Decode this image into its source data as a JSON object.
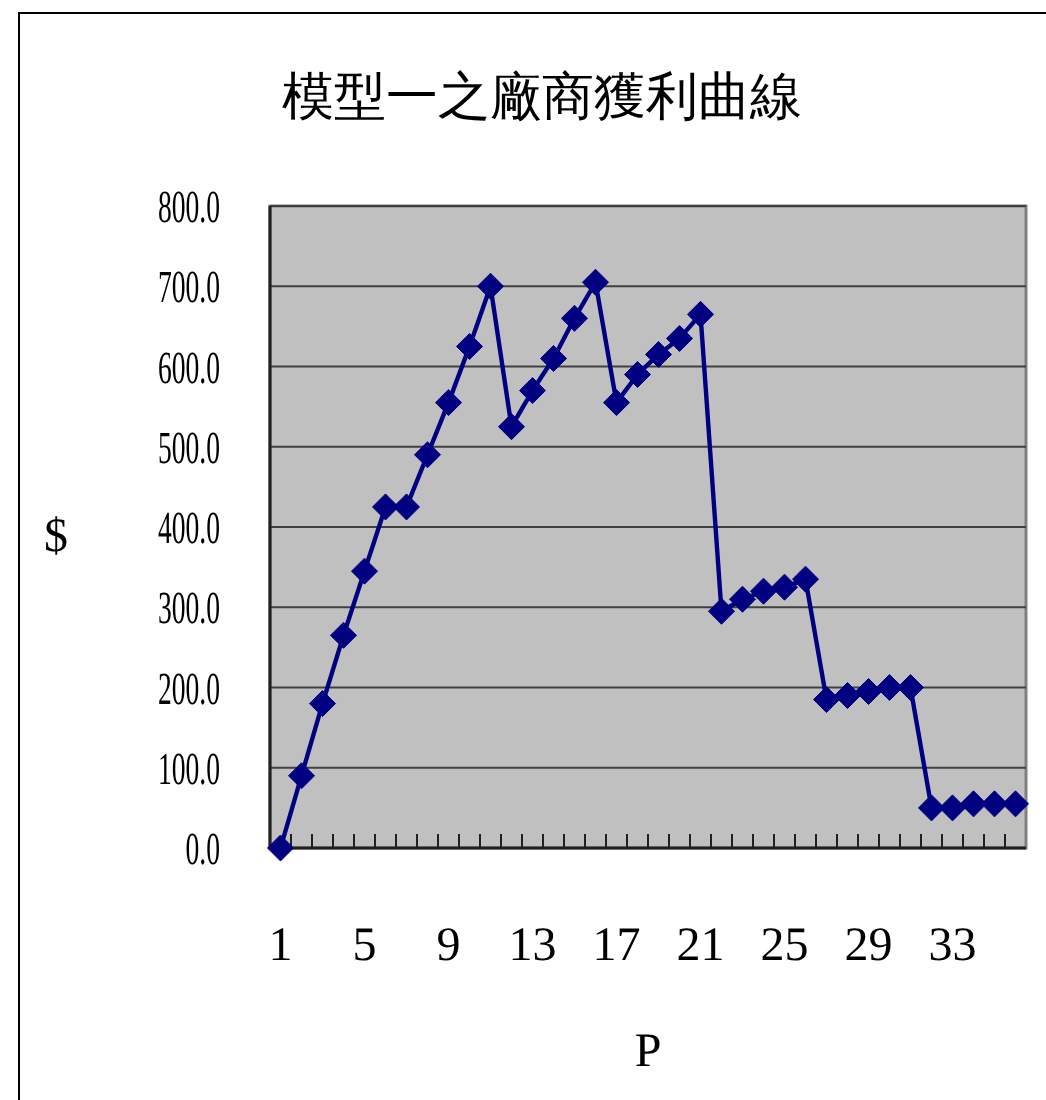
{
  "chart_data": {
    "type": "line",
    "title": "模型一之廠商獲利曲線",
    "xlabel": "P",
    "ylabel": "$",
    "categories": [
      "1",
      null,
      null,
      null,
      "5",
      null,
      null,
      null,
      "9",
      null,
      null,
      null,
      "13",
      null,
      null,
      null,
      "17",
      null,
      null,
      null,
      "21",
      null,
      null,
      null,
      "25",
      null,
      null,
      null,
      "29",
      null,
      null,
      null,
      "33",
      null,
      null,
      null
    ],
    "series": [
      {
        "color": "#000080",
        "values": [
          0,
          90,
          180,
          265,
          345,
          425,
          425,
          490,
          555,
          625,
          700,
          525,
          570,
          610,
          660,
          705,
          555,
          590,
          615,
          635,
          665,
          295,
          310,
          320,
          325,
          335,
          185,
          190,
          195,
          200,
          200,
          50,
          50,
          55,
          55,
          55
        ]
      }
    ],
    "ylim": [
      0,
      800
    ],
    "yticks": [
      {
        "value": 0,
        "label": "0.0"
      },
      {
        "value": 100,
        "label": "100.0"
      },
      {
        "value": 200,
        "label": "200.0"
      },
      {
        "value": 300,
        "label": "300.0"
      },
      {
        "value": 400,
        "label": "400.0"
      },
      {
        "value": 500,
        "label": "500.0"
      },
      {
        "value": 600,
        "label": "600.0"
      },
      {
        "value": 700,
        "label": "700.0"
      },
      {
        "value": 800,
        "label": "800.0"
      }
    ],
    "grid": "y",
    "marker": "diamond",
    "line_style": "solid"
  }
}
